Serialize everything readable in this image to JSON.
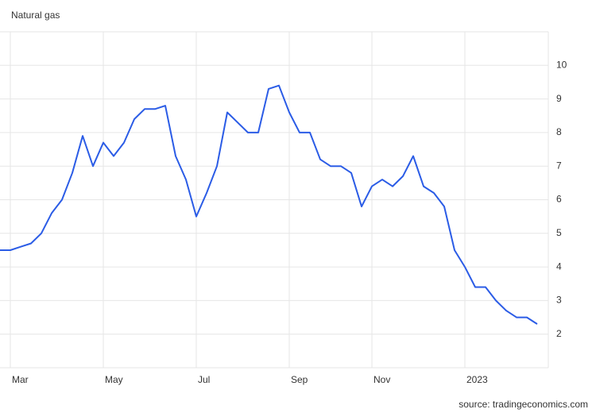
{
  "chart_data": {
    "type": "line",
    "title": "Natural gas",
    "source": "source: tradingeconomics.com",
    "categories": [
      null,
      "Mar",
      null,
      null,
      null,
      null,
      null,
      null,
      null,
      null,
      "May",
      null,
      null,
      null,
      null,
      null,
      null,
      null,
      null,
      "Jul",
      null,
      null,
      null,
      null,
      null,
      null,
      null,
      null,
      "Sep",
      null,
      null,
      null,
      null,
      null,
      null,
      null,
      "Nov",
      null,
      null,
      null,
      null,
      null,
      null,
      null,
      null,
      "2023",
      null,
      null,
      null,
      null,
      null,
      null,
      null
    ],
    "series": [
      {
        "name": "Natural gas",
        "color": "#2b5ce6",
        "values": [
          4.5,
          4.5,
          4.6,
          4.7,
          5.0,
          5.6,
          6.0,
          6.8,
          7.9,
          7.0,
          7.7,
          7.3,
          7.7,
          8.4,
          8.7,
          8.7,
          8.8,
          7.3,
          6.6,
          5.5,
          6.2,
          7.0,
          8.6,
          8.3,
          8.0,
          8.0,
          9.3,
          9.4,
          8.6,
          8.0,
          8.0,
          7.2,
          7.0,
          7.0,
          6.8,
          5.8,
          6.4,
          6.6,
          6.4,
          6.7,
          7.3,
          6.4,
          6.2,
          5.8,
          4.5,
          4.0,
          3.4,
          3.4,
          3.0,
          2.7,
          2.5,
          2.5,
          2.3
        ]
      }
    ],
    "ylim": [
      1,
      11
    ],
    "yticks": [
      2,
      3,
      4,
      5,
      6,
      7,
      8,
      9,
      10
    ],
    "grid": true
  }
}
